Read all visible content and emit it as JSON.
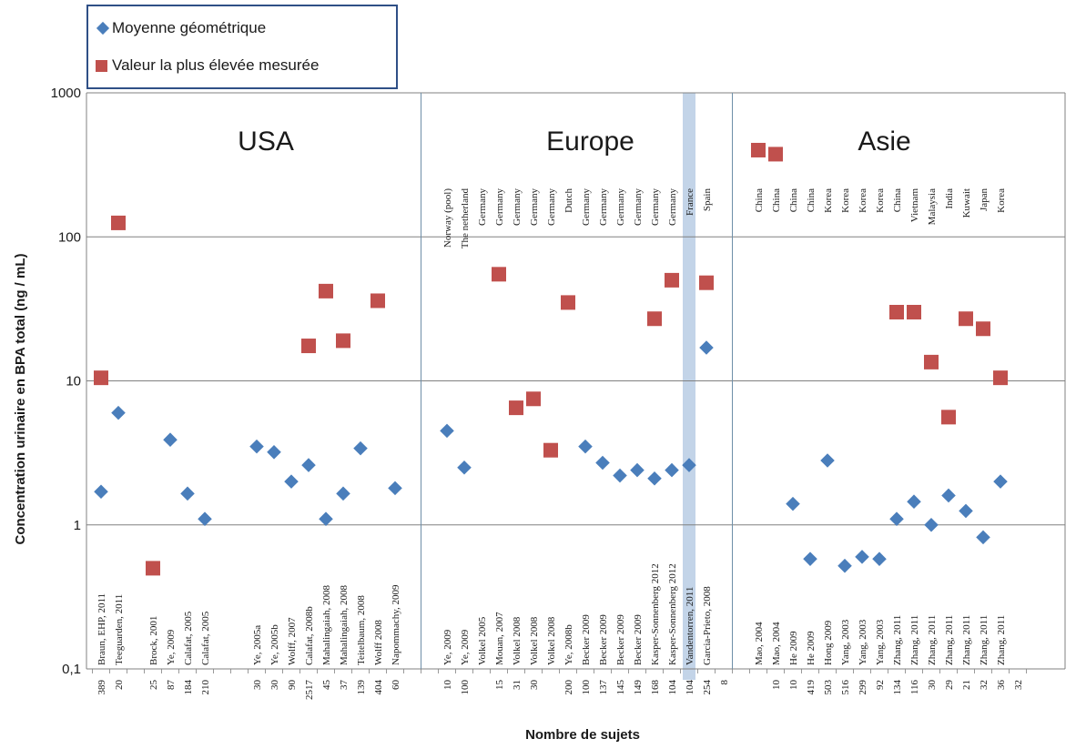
{
  "legend": {
    "geo_mean": "Moyenne géométrique",
    "max_value": "Valeur la plus élevée mesurée"
  },
  "colors": {
    "geo_mean": "#4a7ebb",
    "max_value": "#c0504d",
    "highlight": "#b8cce4",
    "grid": "#808080"
  },
  "chart_data": {
    "type": "scatter",
    "ylabel": "Concentration urinaire en BPA total (ng / mL)",
    "xlabel": "Nombre de sujets",
    "yscale": "log",
    "ylim": [
      0.1,
      1000
    ],
    "yticks": [
      "0,1",
      "1",
      "10",
      "100",
      "1000"
    ],
    "grid": true,
    "legend_position": "top-left",
    "regions": [
      {
        "name": "USA",
        "start": 0,
        "end": 19
      },
      {
        "name": "Europe",
        "start": 19,
        "end": 37
      },
      {
        "name": "Asie",
        "start": 37,
        "end": 53
      }
    ],
    "highlight_slot": 34,
    "studies": [
      {
        "slot": 0,
        "label": "Braun, EHP, 2011",
        "n": "389",
        "geo": 1.7,
        "max": 10.5
      },
      {
        "slot": 1,
        "label": "Teeguarden, 2011",
        "n": "20",
        "geo": 6.0,
        "max": 125
      },
      {
        "slot": 3,
        "label": "",
        "n": "",
        "geo": null,
        "max": null
      },
      {
        "slot": 3,
        "label": "Brock, 2001",
        "n": "25",
        "geo": null,
        "max": 0.5
      },
      {
        "slot": 4,
        "label": "Ye, 2009",
        "n": "87",
        "geo": 3.9,
        "max": null
      },
      {
        "slot": 5,
        "label": "Calafat, 2005",
        "n": "184",
        "geo": 1.65,
        "max": null
      },
      {
        "slot": 6,
        "label": "Calafat, 2005",
        "n": "210",
        "geo": 1.1,
        "max": null
      },
      {
        "slot": 9,
        "label": "Ye, 2005a",
        "n": "30",
        "geo": 3.5,
        "max": null
      },
      {
        "slot": 10,
        "label": "Ye, 2005b",
        "n": "30",
        "geo": 3.2,
        "max": null
      },
      {
        "slot": 11,
        "label": "Wolff, 2007",
        "n": "90",
        "geo": 2.0,
        "max": null
      },
      {
        "slot": 12,
        "label": "Calafat, 2008b",
        "n": "2517",
        "geo": 2.6,
        "max": 17.5
      },
      {
        "slot": 13,
        "label": "Mahalingaiah, 2008",
        "n": "45",
        "geo": 1.1,
        "max": 42
      },
      {
        "slot": 14,
        "label": "Mahalingaiah, 2008",
        "n": "37",
        "geo": 1.65,
        "max": 19
      },
      {
        "slot": 15,
        "label": "Teitelbaum, 2008",
        "n": "139",
        "geo": 3.4,
        "max": null
      },
      {
        "slot": 16,
        "label": "Wolff 2008",
        "n": "404",
        "geo": null,
        "max": 36
      },
      {
        "slot": 17,
        "label": "Napommachy, 2009",
        "n": "60",
        "geo": 1.8,
        "max": null
      },
      {
        "slot": 20,
        "label": "Ye, 2009",
        "n": "10",
        "geo": 4.5,
        "max": null
      },
      {
        "slot": 21,
        "label": "Ye, 2009",
        "n": "100",
        "geo": 2.5,
        "max": null
      },
      {
        "slot": 22,
        "label": "Volkel 2005",
        "n": "",
        "geo": null,
        "max": null
      },
      {
        "slot": 23,
        "label": "Mouan, 2007",
        "n": "15",
        "geo": null,
        "max": 55
      },
      {
        "slot": 24,
        "label": "Volkel 2008",
        "n": "31",
        "geo": null,
        "max": 6.5
      },
      {
        "slot": 25,
        "label": "Volkel 2008",
        "n": "30",
        "geo": null,
        "max": 7.5
      },
      {
        "slot": 26,
        "label": "Volkel 2008",
        "n": "",
        "geo": null,
        "max": 3.3
      },
      {
        "slot": 27,
        "label": "Ye, 2008b",
        "n": "200",
        "geo": null,
        "max": 35
      },
      {
        "slot": 28,
        "label": "Becker 2009",
        "n": "100",
        "geo": 3.5,
        "max": null
      },
      {
        "slot": 29,
        "label": "Becker 2009",
        "n": "137",
        "geo": 2.7,
        "max": null
      },
      {
        "slot": 30,
        "label": "Becker 2009",
        "n": "145",
        "geo": 2.2,
        "max": null
      },
      {
        "slot": 31,
        "label": "Becker 2009",
        "n": "149",
        "geo": 2.4,
        "max": null
      },
      {
        "slot": 32,
        "label": "Kasper-Sonnenberg 2012",
        "n": "168",
        "geo": 2.1,
        "max": 27
      },
      {
        "slot": 33,
        "label": "Kasper-Sonnenberg 2012",
        "n": "104",
        "geo": 2.4,
        "max": 50
      },
      {
        "slot": 34,
        "label": "Vandentorren, 2011",
        "n": "104",
        "geo": 2.6,
        "max": null
      },
      {
        "slot": 35,
        "label": "Garcia-Prieto, 2008",
        "n": "254",
        "geo": 17,
        "max": 48
      },
      {
        "slot": 36,
        "label": "",
        "n": "8",
        "geo": null,
        "max": null
      },
      {
        "slot": 38,
        "label": "Mao, 2004",
        "n": "",
        "geo": null,
        "max": 400
      },
      {
        "slot": 39,
        "label": "Mao, 2004",
        "n": "10",
        "geo": null,
        "max": 375
      },
      {
        "slot": 40,
        "label": "He 2009",
        "n": "10",
        "geo": 1.4,
        "max": null
      },
      {
        "slot": 41,
        "label": "He 2009",
        "n": "419",
        "geo": 0.58,
        "max": null
      },
      {
        "slot": 42,
        "label": "Hong 2009",
        "n": "503",
        "geo": 2.8,
        "max": null
      },
      {
        "slot": 43,
        "label": "Yang, 2003",
        "n": "516",
        "geo": 0.52,
        "max": null
      },
      {
        "slot": 44,
        "label": "Yang, 2003",
        "n": "299",
        "geo": 0.6,
        "max": null
      },
      {
        "slot": 45,
        "label": "Yang, 2003",
        "n": "92",
        "geo": 0.58,
        "max": null
      },
      {
        "slot": 46,
        "label": "Zhang, 2011",
        "n": "134",
        "geo": 1.1,
        "max": 30
      },
      {
        "slot": 47,
        "label": "Zhang, 2011",
        "n": "116",
        "geo": 1.45,
        "max": 30
      },
      {
        "slot": 48,
        "label": "Zhang, 2011",
        "n": "30",
        "geo": 1.0,
        "max": 13.5
      },
      {
        "slot": 49,
        "label": "Zhang, 2011",
        "n": "29",
        "geo": 1.6,
        "max": 5.6
      },
      {
        "slot": 50,
        "label": "Zhang, 2011",
        "n": "21",
        "geo": 1.25,
        "max": 27
      },
      {
        "slot": 51,
        "label": "Zhang, 2011",
        "n": "32",
        "geo": 0.82,
        "max": 23
      },
      {
        "slot": 52,
        "label": "Zhang, 2011",
        "n": "36",
        "geo": 2.0,
        "max": 10.5
      },
      {
        "slot": 53,
        "label": "",
        "n": "32",
        "geo": null,
        "max": null
      }
    ],
    "countries": [
      {
        "slot": 20,
        "label": "Norway (pool)"
      },
      {
        "slot": 21,
        "label": "The netherland"
      },
      {
        "slot": 22,
        "label": "Germany"
      },
      {
        "slot": 23,
        "label": "Germany"
      },
      {
        "slot": 24,
        "label": "Germany"
      },
      {
        "slot": 25,
        "label": "Germany"
      },
      {
        "slot": 26,
        "label": "Germany"
      },
      {
        "slot": 27,
        "label": "Dutch"
      },
      {
        "slot": 28,
        "label": "Germany"
      },
      {
        "slot": 29,
        "label": "Germany"
      },
      {
        "slot": 30,
        "label": "Germany"
      },
      {
        "slot": 31,
        "label": "Germany"
      },
      {
        "slot": 32,
        "label": "Germany"
      },
      {
        "slot": 33,
        "label": "Germany"
      },
      {
        "slot": 34,
        "label": "France"
      },
      {
        "slot": 35,
        "label": "Spain"
      },
      {
        "slot": 38,
        "label": "China"
      },
      {
        "slot": 39,
        "label": "China"
      },
      {
        "slot": 40,
        "label": "China"
      },
      {
        "slot": 41,
        "label": "China"
      },
      {
        "slot": 42,
        "label": "Korea"
      },
      {
        "slot": 43,
        "label": "Korea"
      },
      {
        "slot": 44,
        "label": "Korea"
      },
      {
        "slot": 45,
        "label": "Korea"
      },
      {
        "slot": 46,
        "label": "China"
      },
      {
        "slot": 47,
        "label": "Vietnam"
      },
      {
        "slot": 48,
        "label": "Malaysia"
      },
      {
        "slot": 49,
        "label": "India"
      },
      {
        "slot": 50,
        "label": "Kuwait"
      },
      {
        "slot": 51,
        "label": "Japan"
      },
      {
        "slot": 52,
        "label": "Korea"
      }
    ]
  }
}
